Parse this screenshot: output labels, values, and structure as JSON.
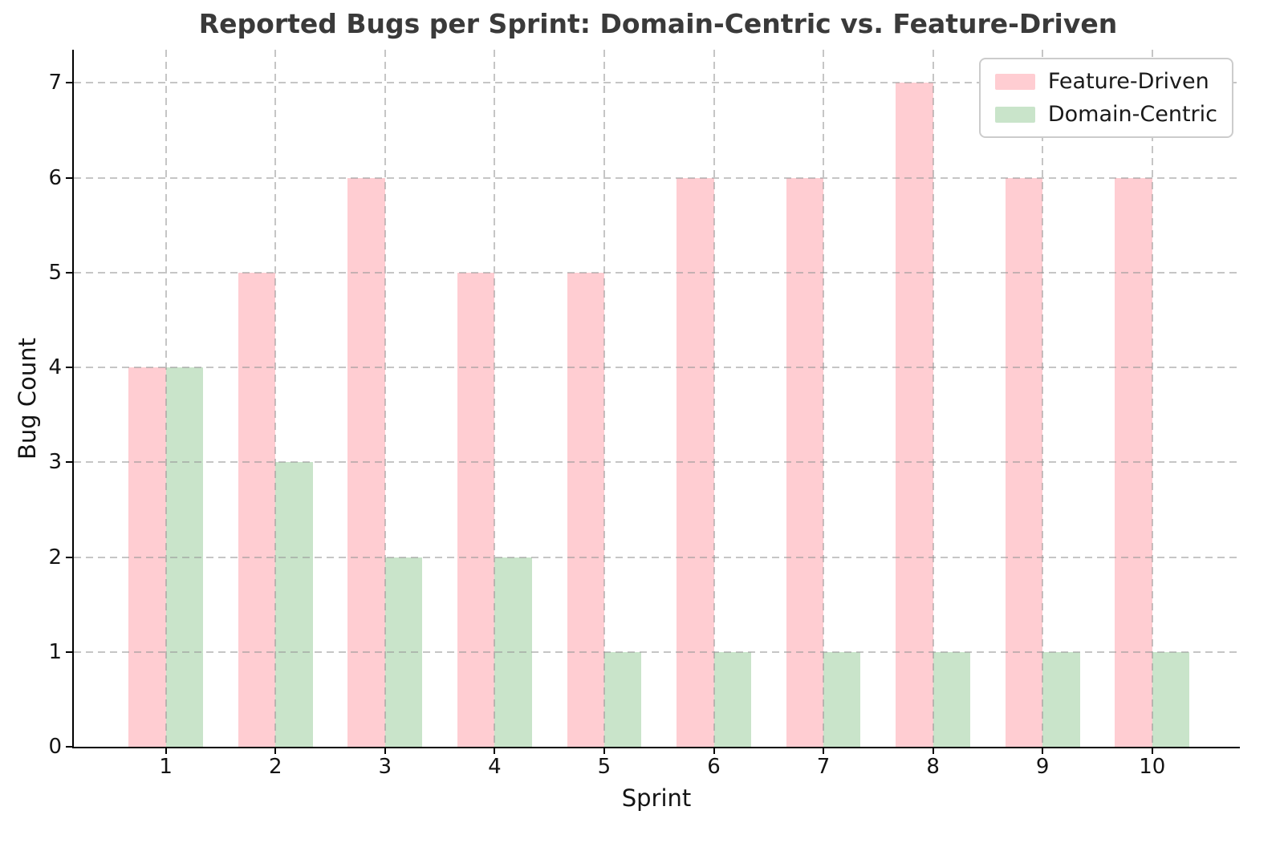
{
  "chart_data": {
    "type": "bar",
    "title": "Reported Bugs per Sprint: Domain-Centric vs. Feature-Driven",
    "xlabel": "Sprint",
    "ylabel": "Bug Count",
    "categories": [
      1,
      2,
      3,
      4,
      5,
      6,
      7,
      8,
      9,
      10
    ],
    "series": [
      {
        "name": "Feature-Driven",
        "color": "#ffcdd2",
        "values": [
          4,
          5,
          6,
          5,
          5,
          6,
          6,
          7,
          6,
          6
        ]
      },
      {
        "name": "Domain-Centric",
        "color": "#c9e4ca",
        "values": [
          4,
          3,
          2,
          2,
          1,
          1,
          1,
          1,
          1,
          1
        ]
      }
    ],
    "yticks": [
      0,
      1,
      2,
      3,
      4,
      5,
      6,
      7
    ],
    "xlim": [
      0.16,
      10.8
    ],
    "ylim": [
      0,
      7.35
    ],
    "bar_width_units": 0.34,
    "grid": true,
    "grid_line_style": "dashed",
    "legend_position": "upper right",
    "colors": {
      "grid": "#c8c8c8",
      "spine": "#000000",
      "tick_label": "#141414",
      "title": "#3a3a3a",
      "background": "#ffffff"
    }
  }
}
